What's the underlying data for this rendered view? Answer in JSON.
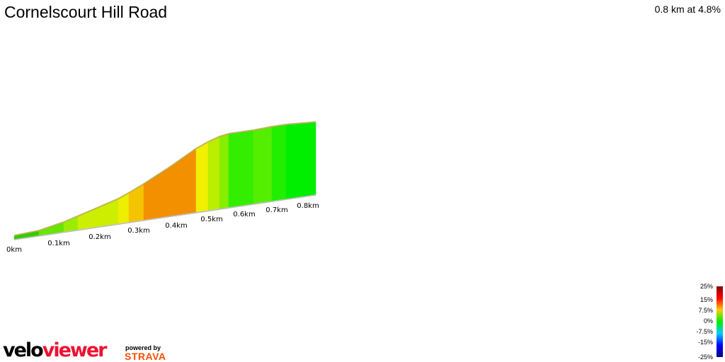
{
  "title": "Cornelscourt Hill Road",
  "summary": "0.8 km at 4.8%",
  "chart_data": {
    "type": "area",
    "title": "Cornelscourt Hill Road",
    "x_ticks": [
      "0km",
      "0.1km",
      "0.2km",
      "0.3km",
      "0.4km",
      "0.5km",
      "0.6km",
      "0.7km",
      "0.8km"
    ],
    "xlim": [
      0,
      0.8
    ],
    "segment_colors": [
      "#33cc00",
      "#66e600",
      "#99ee00",
      "#ccee00",
      "#eeee00",
      "#f5c400",
      "#f39000",
      "#f0f000",
      "#bbee00",
      "#88ee00",
      "#33ee00",
      "#55ee00",
      "#22ee00",
      "#00ee00"
    ],
    "legend": {
      "labels": [
        "25%",
        "15%",
        "7.5%",
        "0%",
        "-7.5%",
        "-15%",
        "-25%"
      ],
      "colors": [
        "#880000",
        "#ff0000",
        "#ffcc00",
        "#00ee00",
        "#00ccff",
        "#0000ff",
        "#000088"
      ]
    }
  },
  "branding": {
    "logo_a": "velo",
    "logo_b": "viewer",
    "powered": "powered by",
    "strava": "STRAVA"
  }
}
